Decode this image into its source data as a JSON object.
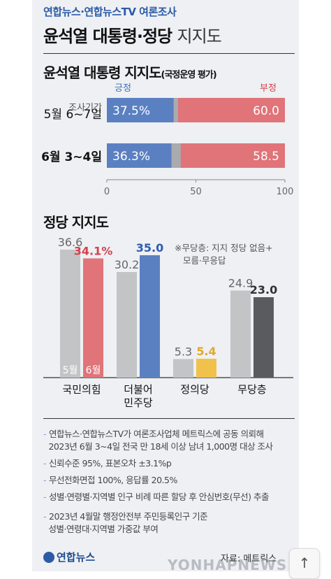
{
  "header": {
    "subtitle": "연합뉴스·연합뉴스TV 여론조사",
    "title_bold": "윤석열 대통령·정당",
    "title_light": "지지도"
  },
  "chart_data": [
    {
      "type": "bar",
      "orientation": "horizontal",
      "stacked": true,
      "title": "윤석열 대통령 지지도",
      "subtitle": "(국정운영 평가)",
      "legend": [
        "긍정",
        "부정"
      ],
      "period_label": "조사기간",
      "categories": [
        "5월 6~7일",
        "6월 3~4일"
      ],
      "series": [
        {
          "name": "긍정",
          "values": [
            37.5,
            36.3
          ],
          "color": "#5b80c2"
        },
        {
          "name": "부정",
          "values": [
            60.0,
            58.5
          ],
          "color": "#e07479"
        }
      ],
      "other_color": "#a9abae",
      "value_labels": {
        "positive": [
          "37.5%",
          "36.3%"
        ],
        "negative": [
          "60.0",
          "58.5"
        ]
      },
      "xlim": [
        0,
        100
      ],
      "xticks": [
        "0",
        "50",
        "100"
      ]
    },
    {
      "type": "bar",
      "orientation": "vertical",
      "title": "정당 지지도",
      "note": [
        "※무당층: 지지 정당 없음+",
        "모름·무응답"
      ],
      "categories": [
        [
          "국민의힘"
        ],
        [
          "더불어",
          "민주당"
        ],
        [
          "정의당"
        ],
        [
          "무당층"
        ]
      ],
      "series": [
        {
          "name": "5월",
          "values": [
            36.6,
            30.2,
            5.3,
            24.9
          ],
          "color": "#c3c4c6"
        },
        {
          "name": "6월",
          "values": [
            34.1,
            35.0,
            5.4,
            23.0
          ],
          "colors": [
            "#e07479",
            "#5b80c2",
            "#f0c14b",
            "#5a5b5e"
          ]
        }
      ],
      "value_labels": {
        "may": [
          "36.6",
          "30.2",
          "5.3",
          "24.9"
        ],
        "june": [
          "34.1%",
          "35.0",
          "5.4",
          "23.0"
        ],
        "june_colors": [
          "#d6404b",
          "#2f5bb0",
          "#e0a82a",
          "#333333"
        ]
      },
      "bar_labels": [
        "5월",
        "6월"
      ],
      "ylim": [
        0,
        40
      ]
    }
  ],
  "footnotes": [
    "연합뉴스·연합뉴스TV가 여론조사업체 메트릭스에 공동 의뢰해",
    "2023년 6월 3~4일 전국 만 18세 이상 남녀 1,000명 대상 조사",
    "신뢰수준 95%, 표본오차 ±3.1%p",
    "무선전화면접 100%, 응답률 20.5%",
    "성별·연령별·지역별 인구 비례 따른 할당 후 안심번호(무선) 추출",
    "2023년 4월말 행정안전부 주민등록인구 기준",
    "성별·연령대·지역별 가중값 부여"
  ],
  "footer": {
    "logo": "연합뉴스",
    "source": "자료: 메트릭스",
    "watermark": "YONHAPNEWS"
  },
  "scroll_top": {
    "icon": "arrow-up-icon",
    "glyph": "↑"
  }
}
